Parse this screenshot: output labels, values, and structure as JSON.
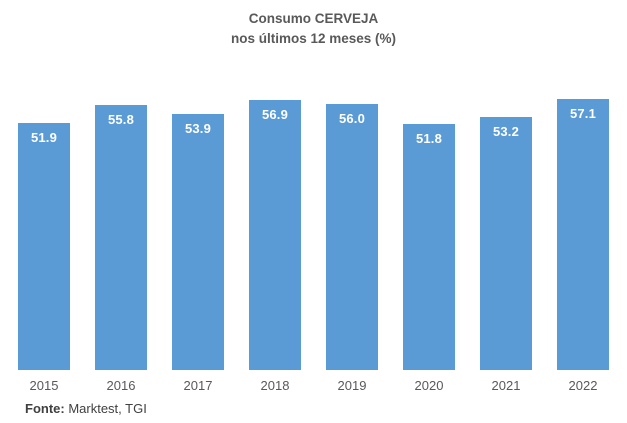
{
  "title": {
    "line1": "Consumo CERVEJA",
    "line2": "nos últimos 12 meses (%)"
  },
  "chart_data": {
    "type": "bar",
    "categories": [
      "2015",
      "2016",
      "2017",
      "2018",
      "2019",
      "2020",
      "2021",
      "2022"
    ],
    "values": [
      51.9,
      55.8,
      53.9,
      56.9,
      56.0,
      51.8,
      53.2,
      57.1
    ],
    "title": "Consumo CERVEJA nos últimos 12 meses (%)",
    "xlabel": "",
    "ylabel": "",
    "ylim": [
      0,
      60
    ],
    "grid": false,
    "legend_position": "none",
    "bar_color": "#5B9BD5",
    "value_label_color": "#FFFFFF",
    "value_label_position": "inside-end",
    "axis_text_color": "#595959"
  },
  "footer": {
    "label": "Fonte:",
    "text": " Marktest, TGI"
  }
}
